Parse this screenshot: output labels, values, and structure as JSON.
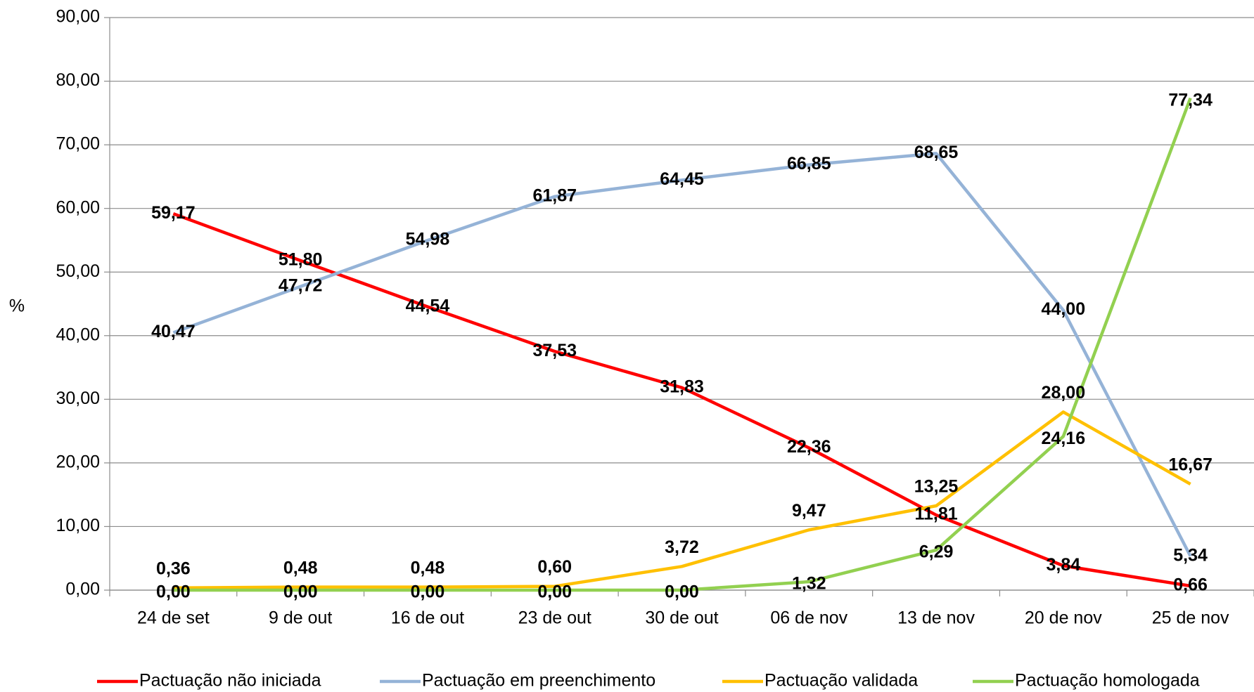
{
  "chart_data": {
    "type": "line",
    "y_label": "%",
    "categories": [
      "24 de set",
      "9 de out",
      "16 de out",
      "23 de out",
      "30 de out",
      "06 de nov",
      "13 de nov",
      "20 de nov",
      "25 de nov"
    ],
    "ylim": [
      0,
      90
    ],
    "yticks": [
      {
        "value": 0,
        "label": "0,00"
      },
      {
        "value": 10,
        "label": "10,00"
      },
      {
        "value": 20,
        "label": "20,00"
      },
      {
        "value": 30,
        "label": "30,00"
      },
      {
        "value": 40,
        "label": "40,00"
      },
      {
        "value": 50,
        "label": "50,00"
      },
      {
        "value": 60,
        "label": "60,00"
      },
      {
        "value": 70,
        "label": "70,00"
      },
      {
        "value": 80,
        "label": "80,00"
      },
      {
        "value": 90,
        "label": "90,00"
      }
    ],
    "grid": true,
    "legend": "bottom",
    "series": [
      {
        "name": "Pactuação não iniciada",
        "color": "#ff0000",
        "values": [
          59.17,
          51.8,
          44.54,
          37.53,
          31.83,
          22.36,
          11.81,
          3.84,
          0.66
        ],
        "value_labels": [
          "59,17",
          "51,80",
          "44,54",
          "37,53",
          "31,83",
          "22,36",
          "11,81",
          "3,84",
          "0,66"
        ]
      },
      {
        "name": "Pactuação em preenchimento",
        "color": "#95b3d7",
        "values": [
          40.47,
          47.72,
          54.98,
          61.87,
          64.45,
          66.85,
          68.65,
          44.0,
          5.34
        ],
        "value_labels": [
          "40,47",
          "47,72",
          "54,98",
          "61,87",
          "64,45",
          "66,85",
          "68,65",
          "44,00",
          "5,34"
        ]
      },
      {
        "name": "Pactuação validada",
        "color": "#ffc000",
        "values": [
          0.36,
          0.48,
          0.48,
          0.6,
          3.72,
          9.47,
          13.25,
          28.0,
          16.67
        ],
        "value_labels": [
          "0,36",
          "0,48",
          "0,48",
          "0,60",
          "3,72",
          "9,47",
          "13,25",
          "28,00",
          "16,67"
        ]
      },
      {
        "name": "Pactuação homologada",
        "color": "#92d050",
        "values": [
          0.0,
          0.0,
          0.0,
          0.0,
          0.0,
          1.32,
          6.29,
          24.16,
          77.34
        ],
        "value_labels": [
          "0,00",
          "0,00",
          "0,00",
          "0,00",
          "0,00",
          "1,32",
          "6,29",
          "24,16",
          "77,34"
        ]
      }
    ]
  }
}
